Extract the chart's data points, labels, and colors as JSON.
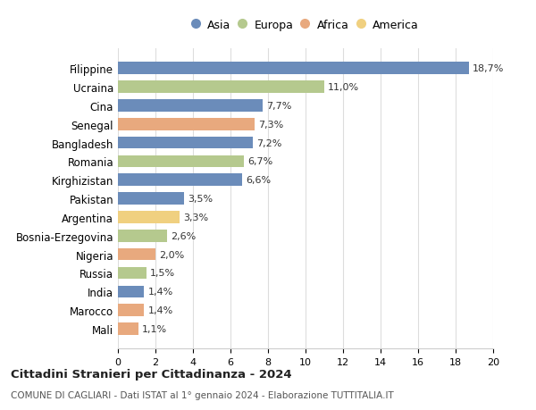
{
  "countries": [
    "Filippine",
    "Ucraina",
    "Cina",
    "Senegal",
    "Bangladesh",
    "Romania",
    "Kirghizistan",
    "Pakistan",
    "Argentina",
    "Bosnia-Erzegovina",
    "Nigeria",
    "Russia",
    "India",
    "Marocco",
    "Mali"
  ],
  "values": [
    18.7,
    11.0,
    7.7,
    7.3,
    7.2,
    6.7,
    6.6,
    3.5,
    3.3,
    2.6,
    2.0,
    1.5,
    1.4,
    1.4,
    1.1
  ],
  "labels": [
    "18,7%",
    "11,0%",
    "7,7%",
    "7,3%",
    "7,2%",
    "6,7%",
    "6,6%",
    "3,5%",
    "3,3%",
    "2,6%",
    "2,0%",
    "1,5%",
    "1,4%",
    "1,4%",
    "1,1%"
  ],
  "continents": [
    "Asia",
    "Europa",
    "Asia",
    "Africa",
    "Asia",
    "Europa",
    "Asia",
    "Asia",
    "America",
    "Europa",
    "Africa",
    "Europa",
    "Asia",
    "Africa",
    "Africa"
  ],
  "colors": {
    "Asia": "#6b8cba",
    "Europa": "#b5c98e",
    "Africa": "#e8a97e",
    "America": "#f0d080"
  },
  "legend_order": [
    "Asia",
    "Europa",
    "Africa",
    "America"
  ],
  "title": "Cittadini Stranieri per Cittadinanza - 2024",
  "subtitle": "COMUNE DI CAGLIARI - Dati ISTAT al 1° gennaio 2024 - Elaborazione TUTTITALIA.IT",
  "xlim": [
    0,
    20
  ],
  "xticks": [
    0,
    2,
    4,
    6,
    8,
    10,
    12,
    14,
    16,
    18,
    20
  ],
  "background_color": "#ffffff",
  "grid_color": "#dddddd"
}
